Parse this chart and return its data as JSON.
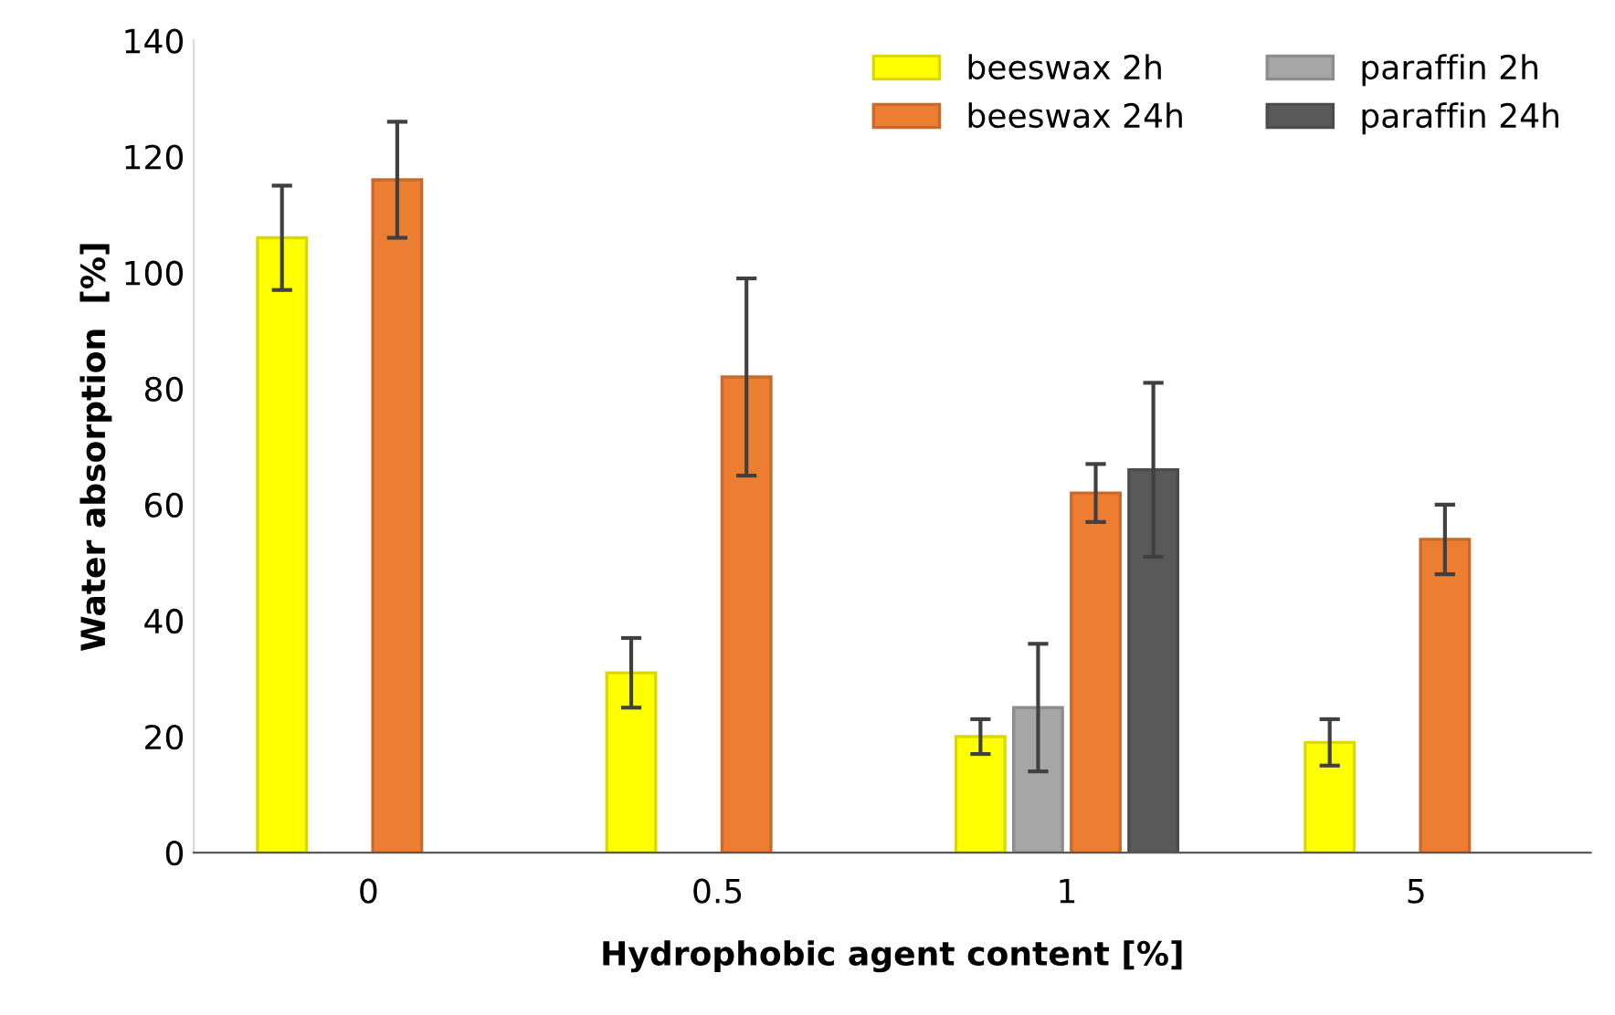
{
  "chart_data": {
    "type": "bar",
    "xlabel": "Hydrophobic agent content [%]",
    "ylabel": "Water absorption  [%]",
    "categories": [
      "0",
      "0.5",
      "1",
      "5"
    ],
    "series": [
      {
        "name": "beeswax 2h",
        "color": "#ffff00",
        "values": [
          106,
          31,
          20,
          19
        ],
        "errors": [
          [
            97,
            115
          ],
          [
            25,
            37
          ],
          [
            17,
            23
          ],
          [
            15,
            23
          ]
        ]
      },
      {
        "name": "paraffin 2h",
        "color": "#a6a6a6",
        "values": [
          null,
          null,
          25,
          null
        ],
        "errors": [
          null,
          null,
          [
            14,
            36
          ],
          null
        ]
      },
      {
        "name": "beeswax 24h",
        "color": "#ed7d31",
        "values": [
          116,
          82,
          62,
          54
        ],
        "errors": [
          [
            106,
            126
          ],
          [
            65,
            99
          ],
          [
            57,
            67
          ],
          [
            48,
            60
          ]
        ]
      },
      {
        "name": "paraffin 24h",
        "color": "#595959",
        "values": [
          null,
          null,
          66,
          null
        ],
        "errors": [
          null,
          null,
          [
            51,
            81
          ],
          null
        ]
      }
    ],
    "ylim": [
      0,
      140
    ],
    "yticks": [
      0,
      20,
      40,
      60,
      80,
      100,
      120,
      140
    ],
    "grid": false,
    "legend": "top right"
  }
}
